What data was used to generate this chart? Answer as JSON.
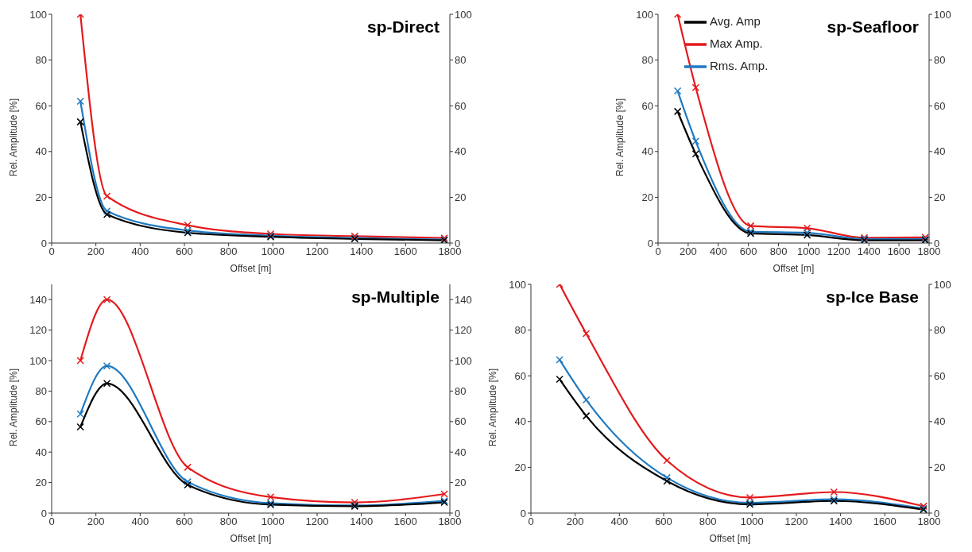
{
  "chart_data": [
    {
      "type": "line",
      "title": "sp-Direct",
      "xlabel": "Offset [m]",
      "ylabel": "Rel. Amplitude [%]",
      "x": [
        130,
        250,
        615,
        990,
        1370,
        1775
      ],
      "xlim": [
        0,
        1800
      ],
      "xticks": [
        0,
        200,
        400,
        600,
        800,
        1000,
        1200,
        1400,
        1600,
        1800
      ],
      "ylim": [
        0,
        100
      ],
      "yticks": [
        0,
        20,
        40,
        60,
        80,
        100
      ],
      "y2lim": [
        0,
        100
      ],
      "y2ticks": [
        0,
        20,
        40,
        60,
        80,
        100
      ],
      "marker": "cross",
      "series": [
        {
          "color": "#e41a1c",
          "values": [
            100,
            20.5,
            7.8,
            4,
            3,
            2.2
          ]
        },
        {
          "color": "#1f7ac2",
          "values": [
            62,
            14,
            5.5,
            3.2,
            2.2,
            1.5
          ]
        },
        {
          "color": "#000000",
          "values": [
            53,
            12.5,
            4.5,
            2.7,
            1.8,
            1.2
          ]
        }
      ]
    },
    {
      "type": "line",
      "title": "sp-Seafloor",
      "xlabel": "Offset [m]",
      "ylabel": "Rel. Amplitude [%]",
      "x": [
        130,
        250,
        615,
        990,
        1370,
        1775
      ],
      "xlim": [
        0,
        1800
      ],
      "xticks": [
        0,
        200,
        400,
        600,
        800,
        1000,
        1200,
        1400,
        1600,
        1800
      ],
      "ylim": [
        0,
        100
      ],
      "yticks": [
        0,
        20,
        40,
        60,
        80,
        100
      ],
      "y2lim": [
        0,
        100
      ],
      "y2ticks": [
        0,
        20,
        40,
        60,
        80,
        100
      ],
      "marker": "cross",
      "legend": "top",
      "series": [
        {
          "name": "Max Amp.",
          "color": "#e41a1c",
          "values": [
            100,
            68,
            7.5,
            6.5,
            2.3,
            2.5
          ]
        },
        {
          "name": "Rms. Amp.",
          "color": "#1f7ac2",
          "values": [
            66.5,
            44.5,
            5,
            4.5,
            1.8,
            1.7
          ]
        },
        {
          "name": "Avg. Amp",
          "color": "#000000",
          "values": [
            57.5,
            39,
            4.2,
            3.5,
            1.2,
            1.2
          ]
        }
      ]
    },
    {
      "type": "line",
      "title": "sp-Multiple",
      "xlabel": "Offset [m]",
      "ylabel": "Rel. Amplitude [%]",
      "x": [
        130,
        250,
        615,
        990,
        1370,
        1775
      ],
      "xlim": [
        0,
        1800
      ],
      "xticks": [
        0,
        200,
        400,
        600,
        800,
        1000,
        1200,
        1400,
        1600,
        1800
      ],
      "ylim": [
        0,
        150
      ],
      "yticks": [
        0,
        20,
        40,
        60,
        80,
        100,
        120,
        140
      ],
      "y2lim": [
        0,
        150
      ],
      "y2ticks": [
        0,
        20,
        40,
        60,
        80,
        100,
        120,
        140
      ],
      "marker": "cross",
      "series": [
        {
          "color": "#e41a1c",
          "values": [
            100,
            140,
            30,
            10.5,
            7,
            12.5
          ]
        },
        {
          "color": "#1f7ac2",
          "values": [
            65,
            96.5,
            20.5,
            6.5,
            5,
            8
          ]
        },
        {
          "color": "#000000",
          "values": [
            56.5,
            85,
            18.5,
            5.5,
            4.5,
            7
          ]
        }
      ]
    },
    {
      "type": "line",
      "title": "sp-Ice Base",
      "xlabel": "Offset [m]",
      "ylabel": "Rel. Amplitude [%]",
      "x": [
        130,
        250,
        615,
        990,
        1370,
        1775
      ],
      "xlim": [
        0,
        1800
      ],
      "xticks": [
        0,
        200,
        400,
        600,
        800,
        1000,
        1200,
        1400,
        1600,
        1800
      ],
      "ylim": [
        0,
        100
      ],
      "yticks": [
        0,
        20,
        40,
        60,
        80,
        100
      ],
      "y2lim": [
        0,
        100
      ],
      "y2ticks": [
        0,
        20,
        40,
        60,
        80,
        100
      ],
      "marker": "cross",
      "series": [
        {
          "color": "#e41a1c",
          "values": [
            100,
            78.5,
            23,
            6.8,
            9.2,
            3
          ]
        },
        {
          "color": "#1f7ac2",
          "values": [
            67,
            49.5,
            15.5,
            4.5,
            6,
            2
          ]
        },
        {
          "color": "#000000",
          "values": [
            58.5,
            42.5,
            14,
            3.8,
            5.3,
            1.5
          ]
        }
      ]
    }
  ]
}
